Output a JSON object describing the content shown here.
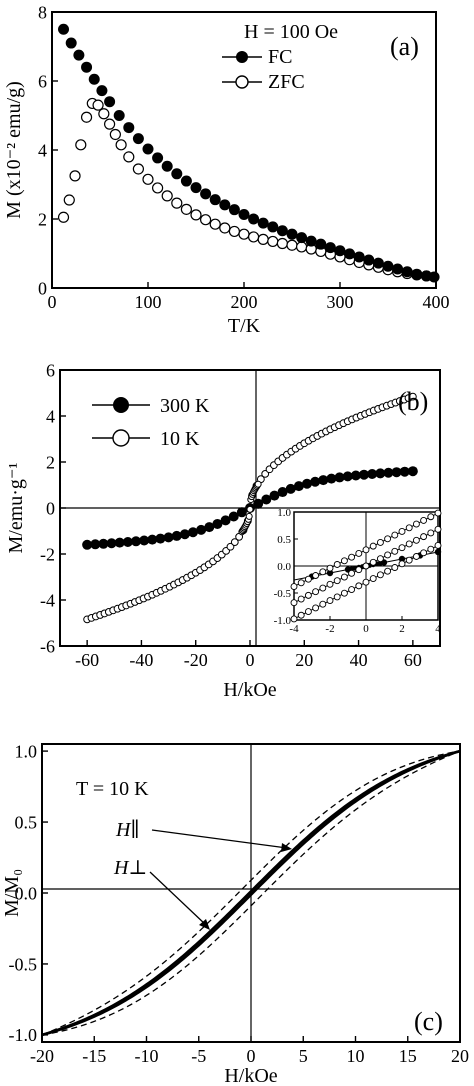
{
  "chart_data": [
    {
      "type": "scatter",
      "panel_label": "(a)",
      "annotation": "H = 100 Oe",
      "xlabel": "T/K",
      "ylabel": "M (x10⁻² emu/g)",
      "xlim": [
        0,
        400
      ],
      "ylim": [
        0,
        8
      ],
      "xticks": [
        0,
        100,
        200,
        300,
        400
      ],
      "yticks": [
        0,
        2,
        4,
        6,
        8
      ],
      "legend_position": "top-center",
      "series": [
        {
          "name": "FC",
          "marker": "filled-circle",
          "x": [
            12,
            20,
            28,
            36,
            44,
            52,
            60,
            70,
            80,
            90,
            100,
            110,
            120,
            130,
            140,
            150,
            160,
            170,
            180,
            190,
            200,
            210,
            220,
            230,
            240,
            250,
            260,
            270,
            280,
            290,
            300,
            310,
            320,
            330,
            340,
            350,
            360,
            370,
            380,
            390,
            398
          ],
          "y": [
            7.5,
            7.1,
            6.75,
            6.4,
            6.05,
            5.72,
            5.4,
            5.0,
            4.65,
            4.33,
            4.03,
            3.77,
            3.53,
            3.31,
            3.1,
            2.91,
            2.73,
            2.56,
            2.41,
            2.27,
            2.13,
            2.0,
            1.88,
            1.77,
            1.66,
            1.56,
            1.46,
            1.36,
            1.27,
            1.17,
            1.08,
            0.99,
            0.9,
            0.81,
            0.72,
            0.63,
            0.55,
            0.47,
            0.4,
            0.35,
            0.32
          ]
        },
        {
          "name": "ZFC",
          "marker": "open-circle",
          "x": [
            12,
            18,
            24,
            30,
            36,
            42,
            48,
            54,
            60,
            66,
            72,
            80,
            90,
            100,
            110,
            120,
            130,
            140,
            150,
            160,
            170,
            180,
            190,
            200,
            210,
            220,
            230,
            240,
            250,
            260,
            270,
            280,
            290,
            300,
            310,
            320,
            330,
            340,
            350,
            360,
            370,
            380,
            390
          ],
          "y": [
            2.05,
            2.55,
            3.25,
            4.15,
            4.95,
            5.35,
            5.3,
            5.05,
            4.75,
            4.45,
            4.15,
            3.8,
            3.45,
            3.15,
            2.9,
            2.67,
            2.46,
            2.28,
            2.12,
            1.98,
            1.85,
            1.74,
            1.64,
            1.56,
            1.48,
            1.41,
            1.35,
            1.29,
            1.24,
            1.19,
            1.13,
            1.06,
            0.98,
            0.9,
            0.82,
            0.74,
            0.67,
            0.6,
            0.53,
            0.47,
            0.42,
            0.38,
            0.35
          ]
        }
      ]
    },
    {
      "type": "scatter",
      "panel_label": "(b)",
      "xlabel": "H/kOe",
      "ylabel": "M/emu·g⁻¹",
      "xlim": [
        -70,
        70
      ],
      "ylim": [
        -6,
        6
      ],
      "xticks": [
        -60,
        -40,
        -20,
        0,
        20,
        40,
        60
      ],
      "yticks": [
        -6,
        -4,
        -2,
        0,
        2,
        4,
        6
      ],
      "legend_position": "top-left",
      "series": [
        {
          "name": "300 K",
          "marker": "filled-circle",
          "model": "sat_tanh",
          "Ms": 1.25,
          "H0": 22,
          "xmin": -60,
          "xmax": 60
        },
        {
          "name": "10 K",
          "marker": "open-circle",
          "model": "sqrt_like",
          "hyst": 0.25,
          "xmin": -60,
          "xmax": 60
        }
      ],
      "inset": {
        "xlim": [
          -4,
          4
        ],
        "ylim": [
          -1.0,
          1.0
        ],
        "xticks": [
          -4,
          -2,
          0,
          2,
          4
        ],
        "yticks": [
          -1.0,
          -0.5,
          0.0,
          0.5,
          1.0
        ]
      }
    },
    {
      "type": "line",
      "panel_label": "(c)",
      "annotation": "T = 10 K",
      "xlabel": "H/kOe",
      "ylabel": "M/M₀",
      "xlim": [
        -20,
        20
      ],
      "ylim": [
        -1.05,
        1.05
      ],
      "xticks": [
        -20,
        -15,
        -10,
        -5,
        0,
        5,
        10,
        15,
        20
      ],
      "yticks": [
        -1.0,
        -0.5,
        0.0,
        0.5,
        1.0
      ],
      "series": [
        {
          "name": "H∥",
          "style": "dashed",
          "hyst": 0.09
        },
        {
          "name": "H⊥",
          "style": "solid",
          "hyst": 0.012
        }
      ]
    }
  ]
}
